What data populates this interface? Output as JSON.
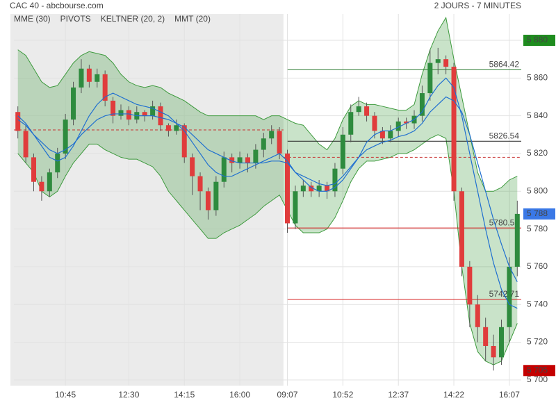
{
  "chart_data": {
    "type": "candlestick",
    "title": "CAC 40 - abcbourse.com",
    "subtitle": "2 JOURS - 7 MINUTES",
    "legend": [
      {
        "name": "MME (30)",
        "color": "#1f6fd0"
      },
      {
        "name": "PIVOTS",
        "color": "#555555"
      },
      {
        "name": "KELTNER (20, 2)",
        "color": "#3d9a3d"
      },
      {
        "name": "MMT (20)",
        "color": "#1f6fd0"
      }
    ],
    "categories": [
      null,
      null,
      null,
      null,
      null,
      null,
      "10:45",
      null,
      null,
      null,
      null,
      null,
      null,
      null,
      "12:30",
      null,
      null,
      null,
      null,
      null,
      null,
      "14:15",
      null,
      null,
      null,
      null,
      null,
      null,
      "16:00",
      null,
      null,
      null,
      null,
      null,
      "09:07",
      null,
      null,
      null,
      null,
      null,
      null,
      "10:52",
      null,
      null,
      null,
      null,
      null,
      null,
      "12:37",
      null,
      null,
      null,
      null,
      null,
      null,
      "14:22",
      null,
      null,
      null,
      null,
      null,
      null,
      "16:07",
      null
    ],
    "open": [
      5842,
      5832,
      5818,
      5805,
      5800,
      5810,
      5820,
      5838,
      5855,
      5865,
      5858,
      5862,
      5848,
      5840,
      5843,
      5838,
      5842,
      5840,
      5845,
      5835,
      5832,
      5835,
      5818,
      5808,
      5800,
      5790,
      5805,
      5818,
      5815,
      5818,
      5815,
      5822,
      5828,
      5832,
      5820,
      5783,
      5800,
      5803,
      5800,
      5803,
      5800,
      5812,
      5830,
      5842,
      5845,
      5840,
      5832,
      5828,
      5832,
      5837,
      5836,
      5840,
      5852,
      5868,
      5870,
      5866,
      5800,
      5760,
      5740,
      5728,
      5718,
      5712,
      5728,
      5760
    ],
    "high": [
      5845,
      5835,
      5820,
      5808,
      5812,
      5823,
      5841,
      5858,
      5870,
      5867,
      5865,
      5864,
      5850,
      5846,
      5845,
      5845,
      5843,
      5848,
      5847,
      5836,
      5838,
      5836,
      5820,
      5810,
      5802,
      5808,
      5821,
      5820,
      5821,
      5820,
      5825,
      5831,
      5835,
      5834,
      5822,
      5803,
      5806,
      5805,
      5806,
      5805,
      5815,
      5834,
      5846,
      5850,
      5847,
      5842,
      5834,
      5835,
      5839,
      5839,
      5843,
      5856,
      5875,
      5876,
      5872,
      5868,
      5802,
      5763,
      5745,
      5733,
      5724,
      5732,
      5765,
      5795
    ],
    "low": [
      5828,
      5815,
      5800,
      5795,
      5797,
      5807,
      5817,
      5835,
      5852,
      5855,
      5855,
      5845,
      5836,
      5838,
      5835,
      5836,
      5837,
      5838,
      5832,
      5829,
      5830,
      5815,
      5798,
      5790,
      5785,
      5787,
      5802,
      5810,
      5812,
      5810,
      5812,
      5818,
      5825,
      5817,
      5778,
      5780,
      5797,
      5797,
      5797,
      5796,
      5797,
      5809,
      5826,
      5840,
      5837,
      5828,
      5825,
      5826,
      5829,
      5833,
      5833,
      5837,
      5848,
      5862,
      5862,
      5795,
      5755,
      5728,
      5720,
      5710,
      5705,
      5708,
      5720,
      5755
    ],
    "close": [
      5832,
      5818,
      5805,
      5800,
      5810,
      5820,
      5838,
      5855,
      5865,
      5858,
      5862,
      5848,
      5840,
      5843,
      5838,
      5842,
      5840,
      5845,
      5835,
      5832,
      5835,
      5818,
      5808,
      5800,
      5790,
      5805,
      5818,
      5815,
      5818,
      5815,
      5822,
      5828,
      5832,
      5820,
      5783,
      5800,
      5803,
      5800,
      5803,
      5800,
      5812,
      5830,
      5842,
      5845,
      5840,
      5832,
      5828,
      5832,
      5837,
      5836,
      5840,
      5852,
      5868,
      5870,
      5866,
      5800,
      5760,
      5740,
      5728,
      5718,
      5712,
      5728,
      5760,
      5788
    ],
    "up_color": "#2e8b3e",
    "down_color": "#e03c3c",
    "keltner": {
      "color": "#3d9a3d",
      "upper": [
        5875,
        5872,
        5865,
        5858,
        5855,
        5856,
        5862,
        5868,
        5872,
        5874,
        5873,
        5872,
        5868,
        5862,
        5858,
        5856,
        5855,
        5856,
        5855,
        5852,
        5850,
        5848,
        5845,
        5842,
        5840,
        5840,
        5840,
        5840,
        5840,
        5840,
        5840,
        5838,
        5840,
        5840,
        5838,
        5836,
        5835,
        5830,
        5825,
        5822,
        5828,
        5838,
        5845,
        5848,
        5846,
        5846,
        5845,
        5844,
        5843,
        5843,
        5846,
        5862,
        5875,
        5885,
        5892,
        5870,
        5850,
        5830,
        5810,
        5800,
        5800,
        5802,
        5806,
        5808
      ],
      "lower": [
        5820,
        5815,
        5810,
        5800,
        5797,
        5800,
        5808,
        5815,
        5820,
        5825,
        5825,
        5822,
        5820,
        5818,
        5817,
        5817,
        5815,
        5813,
        5808,
        5800,
        5795,
        5790,
        5785,
        5780,
        5775,
        5775,
        5778,
        5780,
        5782,
        5785,
        5788,
        5792,
        5795,
        5798,
        5790,
        5782,
        5778,
        5778,
        5778,
        5780,
        5786,
        5795,
        5805,
        5812,
        5816,
        5816,
        5817,
        5818,
        5820,
        5820,
        5822,
        5825,
        5828,
        5830,
        5828,
        5800,
        5760,
        5730,
        5715,
        5710,
        5708,
        5710,
        5720,
        5730
      ]
    },
    "mme": {
      "color": "#1f6fd0",
      "values": [
        5838,
        5835,
        5830,
        5826,
        5822,
        5820,
        5822,
        5825,
        5830,
        5834,
        5838,
        5840,
        5841,
        5841,
        5841,
        5840,
        5840,
        5840,
        5839,
        5838,
        5836,
        5834,
        5830,
        5826,
        5822,
        5820,
        5818,
        5816,
        5815,
        5815,
        5815,
        5815,
        5816,
        5816,
        5815,
        5810,
        5808,
        5806,
        5804,
        5803,
        5804,
        5808,
        5813,
        5818,
        5822,
        5824,
        5826,
        5827,
        5829,
        5830,
        5832,
        5836,
        5842,
        5846,
        5850,
        5848,
        5842,
        5830,
        5815,
        5800,
        5785,
        5772,
        5760,
        5752
      ]
    },
    "mmt": {
      "color": "#1f6fd0",
      "values": [
        5840,
        5836,
        5830,
        5824,
        5818,
        5816,
        5818,
        5824,
        5832,
        5840,
        5846,
        5850,
        5852,
        5850,
        5848,
        5846,
        5845,
        5844,
        5842,
        5840,
        5836,
        5832,
        5826,
        5820,
        5814,
        5810,
        5808,
        5808,
        5810,
        5812,
        5814,
        5816,
        5818,
        5820,
        5816,
        5810,
        5806,
        5802,
        5800,
        5800,
        5802,
        5806,
        5812,
        5818,
        5826,
        5830,
        5832,
        5832,
        5834,
        5836,
        5838,
        5842,
        5850,
        5856,
        5860,
        5855,
        5840,
        5820,
        5800,
        5780,
        5762,
        5748,
        5740,
        5738
      ]
    },
    "sessions": [
      {
        "start": 0,
        "end": 33,
        "shaded": true,
        "reference": 5832.5
      },
      {
        "start": 34,
        "end": 63,
        "shaded": false,
        "reference": 5818
      }
    ],
    "pivots": [
      {
        "value": 5864.42,
        "color": "#2e7d32"
      },
      {
        "value": 5826.54,
        "color": "#222222"
      },
      {
        "value": 5780.53,
        "color": "#d62020"
      },
      {
        "value": 5742.71,
        "color": "#d62020"
      }
    ],
    "price_tags": [
      {
        "value": 5880,
        "label": "5 880",
        "color": "#1e8c1e"
      },
      {
        "value": 5788,
        "label": "5 788",
        "color": "#3a78e6"
      },
      {
        "value": 5705,
        "label": "5 705",
        "color": "#c40000"
      }
    ],
    "ylim": [
      5697,
      5894
    ],
    "yticks": [
      {
        "value": 5700,
        "label": "5 700"
      },
      {
        "value": 5720,
        "label": "5 720"
      },
      {
        "value": 5740,
        "label": "5 740"
      },
      {
        "value": 5760,
        "label": "5 760"
      },
      {
        "value": 5780,
        "label": "5 780"
      },
      {
        "value": 5800,
        "label": "5 800"
      },
      {
        "value": 5820,
        "label": "5 820"
      },
      {
        "value": 5840,
        "label": "5 840"
      },
      {
        "value": 5860,
        "label": "5 860"
      },
      {
        "value": 5880,
        "label": "5 880"
      }
    ],
    "grid": true
  }
}
